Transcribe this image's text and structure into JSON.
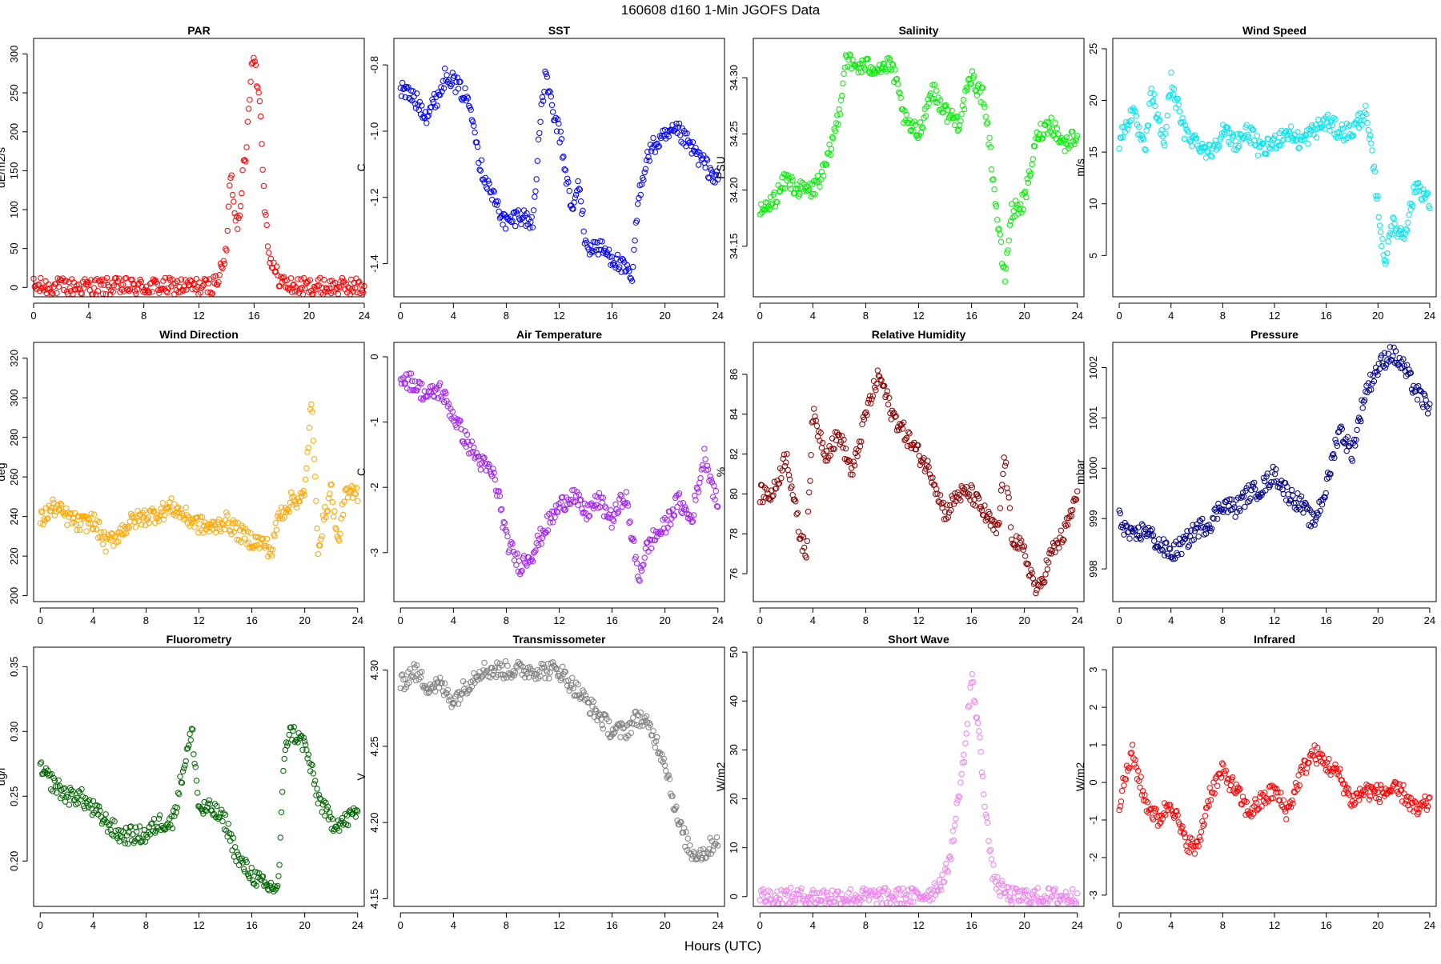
{
  "figure": {
    "title": "160608   d160   1-Min  JGOFS Data",
    "xlabel": "Hours (UTC)"
  },
  "chart_data": [
    {
      "type": "scatter",
      "title": "PAR",
      "ylabel": "uE/m2/s",
      "color": "#ff0000",
      "xlim": [
        0,
        24
      ],
      "ylim": [
        -12,
        320
      ],
      "xticks": [
        0,
        4,
        8,
        12,
        16,
        20,
        24
      ],
      "yticks": [
        0,
        50,
        100,
        150,
        200,
        250,
        300
      ],
      "yticklabels": [
        "0",
        "50",
        "100",
        "150",
        "200",
        "250",
        "300"
      ],
      "series": [
        {
          "name": "PAR",
          "x": [
            0,
            12.5,
            13.0,
            13.5,
            14.0,
            14.3,
            14.6,
            14.8,
            15.0,
            15.2,
            15.4,
            15.6,
            15.8,
            16.0,
            16.2,
            16.4,
            16.6,
            16.8,
            17.0,
            17.2,
            17.5,
            18.0,
            18.5,
            19.0,
            19.5,
            20,
            24
          ],
          "y": [
            1,
            1,
            3,
            15,
            45,
            150,
            100,
            80,
            110,
            150,
            160,
            230,
            280,
            310,
            260,
            250,
            170,
            100,
            60,
            35,
            20,
            8,
            3,
            1,
            1,
            1,
            1
          ]
        }
      ]
    },
    {
      "type": "scatter",
      "title": "SST",
      "ylabel": "C",
      "color": "#0000ff",
      "xlim": [
        -0.5,
        24.5
      ],
      "ylim": [
        -1.5,
        -0.72
      ],
      "xticks": [
        0,
        4,
        8,
        12,
        16,
        20,
        24
      ],
      "yticks": [
        -0.8,
        -1.0,
        -1.2,
        -1.4
      ],
      "yticklabels": [
        "-0.8",
        "-1.0",
        "-1.2",
        "-1.4"
      ],
      "series": [
        {
          "name": "SST",
          "x": [
            0,
            1,
            2,
            3,
            3.5,
            4,
            5,
            5.5,
            6,
            7,
            8,
            9,
            10,
            10.5,
            11,
            11.5,
            12,
            13,
            13.5,
            14,
            15,
            16,
            17,
            17.5,
            18,
            18.5,
            19,
            20,
            21,
            22,
            23,
            24
          ],
          "y": [
            -0.87,
            -0.9,
            -0.95,
            -0.88,
            -0.82,
            -0.85,
            -0.9,
            -0.95,
            -1.1,
            -1.2,
            -1.28,
            -1.25,
            -1.28,
            -1.0,
            -0.82,
            -0.95,
            -1.0,
            -1.25,
            -1.15,
            -1.35,
            -1.35,
            -1.38,
            -1.42,
            -1.45,
            -1.2,
            -1.1,
            -1.05,
            -1.02,
            -1.0,
            -1.05,
            -1.1,
            -1.15
          ]
        }
      ]
    },
    {
      "type": "scatter",
      "title": "Salinity",
      "ylabel": "PSU",
      "color": "#00ee00",
      "xlim": [
        -0.5,
        24.5
      ],
      "ylim": [
        34.105,
        34.335
      ],
      "xticks": [
        0,
        4,
        8,
        12,
        16,
        20,
        24
      ],
      "yticks": [
        34.15,
        34.2,
        34.25,
        34.3
      ],
      "yticklabels": [
        "34.15",
        "34.20",
        "34.25",
        "34.30"
      ],
      "series": [
        {
          "name": "Salinity",
          "x": [
            0,
            1,
            2,
            3,
            4,
            5,
            6,
            6.5,
            7,
            8,
            9,
            10,
            11,
            12,
            13,
            14,
            15,
            16,
            17,
            18,
            18.5,
            19,
            20,
            21,
            22,
            23,
            24
          ],
          "y": [
            34.18,
            34.19,
            34.21,
            34.2,
            34.2,
            34.22,
            34.27,
            34.32,
            34.31,
            34.31,
            34.31,
            34.31,
            34.26,
            34.25,
            34.29,
            34.27,
            34.26,
            34.3,
            34.28,
            34.17,
            34.12,
            34.18,
            34.19,
            34.25,
            34.26,
            34.24,
            34.25
          ]
        }
      ]
    },
    {
      "type": "scatter",
      "title": "Wind Speed",
      "ylabel": "m/s",
      "color": "#00e5ee",
      "xlim": [
        -0.5,
        24.5
      ],
      "ylim": [
        1,
        26
      ],
      "xticks": [
        0,
        4,
        8,
        12,
        16,
        20,
        24
      ],
      "yticks": [
        5,
        10,
        15,
        20,
        25
      ],
      "yticklabels": [
        "5",
        "10",
        "15",
        "20",
        "25"
      ],
      "series": [
        {
          "name": "Wind Speed",
          "x": [
            0,
            1,
            1.5,
            2,
            2.5,
            3,
            3.5,
            4,
            5,
            6,
            7,
            8,
            9,
            10,
            11,
            12,
            13,
            14,
            15,
            16,
            17,
            18,
            19,
            19.5,
            20,
            20.5,
            21,
            22,
            23,
            24
          ],
          "y": [
            16,
            19,
            17,
            15,
            21,
            18,
            16,
            22,
            17,
            16,
            15,
            17,
            16,
            17,
            15,
            16,
            17,
            16,
            17,
            18,
            17,
            17,
            19,
            15,
            10,
            4,
            8,
            7,
            12,
            10
          ]
        }
      ]
    },
    {
      "type": "scatter",
      "title": "Wind Direction",
      "ylabel": "deg",
      "color": "#ffa500",
      "xlim": [
        -0.5,
        24.5
      ],
      "ylim": [
        197,
        328
      ],
      "xticks": [
        0,
        4,
        8,
        12,
        16,
        20,
        24
      ],
      "yticks": [
        200,
        220,
        240,
        260,
        280,
        300,
        320
      ],
      "yticklabels": [
        "200",
        "220",
        "240",
        "260",
        "280",
        "300",
        "320"
      ],
      "series": [
        {
          "name": "Wind Direction",
          "x": [
            0,
            1,
            2,
            3,
            4,
            5,
            6,
            7,
            8,
            9,
            10,
            11,
            12,
            13,
            14,
            15,
            16,
            17,
            17.5,
            18,
            19,
            20,
            20.5,
            21,
            21.5,
            22,
            22.5,
            23,
            24
          ],
          "y": [
            238,
            245,
            240,
            236,
            238,
            226,
            232,
            238,
            240,
            242,
            245,
            240,
            236,
            234,
            238,
            232,
            228,
            226,
            222,
            240,
            248,
            250,
            300,
            225,
            240,
            255,
            225,
            250,
            252
          ]
        }
      ]
    },
    {
      "type": "scatter",
      "title": "Air Temperature",
      "ylabel": "C",
      "color": "#a020f0",
      "xlim": [
        -0.5,
        24.5
      ],
      "ylim": [
        -3.75,
        0.22
      ],
      "xticks": [
        0,
        4,
        8,
        12,
        16,
        20,
        24
      ],
      "yticks": [
        0,
        -1,
        -2,
        -3
      ],
      "yticklabels": [
        "0",
        "-1",
        "-2",
        "-3"
      ],
      "series": [
        {
          "name": "Air Temperature",
          "x": [
            0,
            1,
            2,
            3,
            4,
            5,
            6,
            7,
            7.5,
            8,
            9,
            10,
            11,
            12,
            13,
            14,
            15,
            16,
            17,
            18,
            18.5,
            19,
            20,
            21,
            22,
            23,
            24
          ],
          "y": [
            -0.3,
            -0.4,
            -0.6,
            -0.5,
            -0.9,
            -1.3,
            -1.6,
            -1.8,
            -2.2,
            -2.8,
            -3.2,
            -3.0,
            -2.6,
            -2.3,
            -2.1,
            -2.4,
            -2.2,
            -2.5,
            -2.1,
            -3.4,
            -3.0,
            -2.8,
            -2.6,
            -2.2,
            -2.5,
            -1.5,
            -2.3
          ]
        }
      ]
    },
    {
      "type": "scatter",
      "title": "Relative Humidity",
      "ylabel": "%",
      "color": "#8b0000",
      "xlim": [
        -0.5,
        24.5
      ],
      "ylim": [
        74.6,
        87.6
      ],
      "xticks": [
        0,
        4,
        8,
        12,
        16,
        20,
        24
      ],
      "yticks": [
        76,
        78,
        80,
        82,
        84,
        86
      ],
      "yticklabels": [
        "76",
        "78",
        "80",
        "82",
        "84",
        "86"
      ],
      "series": [
        {
          "name": "Relative Humidity",
          "x": [
            0,
            1,
            2,
            3,
            3.5,
            4,
            5,
            6,
            7,
            8,
            9,
            10,
            11,
            12,
            13,
            14,
            15,
            16,
            17,
            18,
            18.5,
            19,
            20,
            21,
            22,
            23,
            24
          ],
          "y": [
            80,
            80,
            82,
            78,
            77,
            84,
            82,
            83,
            81,
            84,
            86,
            84,
            83,
            82,
            81,
            79,
            80,
            80,
            79,
            78,
            82,
            78,
            77,
            75,
            77,
            78,
            80
          ]
        }
      ]
    },
    {
      "type": "scatter",
      "title": "Pressure",
      "ylabel": "mbar",
      "color": "#00008b",
      "xlim": [
        -0.5,
        24.5
      ],
      "ylim": [
        997.35,
        1002.5
      ],
      "xticks": [
        0,
        4,
        8,
        12,
        16,
        20,
        24
      ],
      "yticks": [
        998,
        999,
        1000,
        1001,
        1002
      ],
      "yticklabels": [
        "998",
        "999",
        "1000",
        "1001",
        "1002"
      ],
      "series": [
        {
          "name": "Pressure",
          "x": [
            0,
            1,
            2,
            3,
            4,
            5,
            6,
            7,
            8,
            9,
            10,
            11,
            12,
            13,
            14,
            15,
            16,
            17,
            18,
            19,
            20,
            21,
            22,
            23,
            24
          ],
          "y": [
            999.0,
            998.6,
            998.8,
            998.5,
            998.3,
            998.5,
            998.8,
            998.9,
            999.3,
            999.2,
            999.5,
            999.6,
            999.9,
            999.5,
            999.3,
            998.9,
            999.6,
            1000.8,
            1000.3,
            1001.5,
            1002.0,
            1002.3,
            1002.0,
            1001.5,
            1001.2
          ]
        }
      ]
    },
    {
      "type": "scatter",
      "title": "Fluorometry",
      "ylabel": "ug/l",
      "color": "#006400",
      "xlim": [
        -0.5,
        24.5
      ],
      "ylim": [
        0.165,
        0.365
      ],
      "xticks": [
        0,
        4,
        8,
        12,
        16,
        20,
        24
      ],
      "yticks": [
        0.2,
        0.25,
        0.3,
        0.35
      ],
      "yticklabels": [
        "0.20",
        "0.25",
        "0.30",
        "0.35"
      ],
      "series": [
        {
          "name": "Fluorometry",
          "x": [
            0,
            1,
            2,
            3,
            4,
            5,
            6,
            7,
            8,
            9,
            10,
            11,
            11.5,
            12,
            13,
            14,
            15,
            16,
            17,
            18,
            18.5,
            19,
            20,
            21,
            22,
            23,
            24
          ],
          "y": [
            0.27,
            0.26,
            0.25,
            0.25,
            0.24,
            0.23,
            0.22,
            0.22,
            0.22,
            0.23,
            0.23,
            0.28,
            0.3,
            0.24,
            0.24,
            0.23,
            0.2,
            0.19,
            0.18,
            0.18,
            0.29,
            0.3,
            0.29,
            0.25,
            0.23,
            0.23,
            0.24
          ]
        }
      ]
    },
    {
      "type": "scatter",
      "title": "Transmissometer",
      "ylabel": "V",
      "color": "#808080",
      "xlim": [
        -0.5,
        24.5
      ],
      "ylim": [
        4.145,
        4.315
      ],
      "xticks": [
        0,
        4,
        8,
        12,
        16,
        20,
        24
      ],
      "yticks": [
        4.15,
        4.2,
        4.25,
        4.3
      ],
      "yticklabels": [
        "4.15",
        "4.20",
        "4.25",
        "4.30"
      ],
      "series": [
        {
          "name": "Transmissometer",
          "x": [
            0,
            1,
            2,
            3,
            4,
            5,
            6,
            7,
            8,
            9,
            10,
            11,
            12,
            13,
            14,
            15,
            16,
            17,
            18,
            19,
            20,
            21,
            22,
            23,
            24
          ],
          "y": [
            4.29,
            4.3,
            4.29,
            4.29,
            4.28,
            4.29,
            4.3,
            4.3,
            4.3,
            4.3,
            4.3,
            4.3,
            4.3,
            4.29,
            4.28,
            4.27,
            4.26,
            4.26,
            4.27,
            4.26,
            4.24,
            4.2,
            4.18,
            4.18,
            4.19
          ]
        }
      ]
    },
    {
      "type": "scatter",
      "title": "Short Wave",
      "ylabel": "W/m2",
      "color": "#ee82ee",
      "xlim": [
        -0.5,
        24.5
      ],
      "ylim": [
        -2,
        51
      ],
      "xticks": [
        0,
        4,
        8,
        12,
        16,
        20,
        24
      ],
      "yticks": [
        0,
        10,
        20,
        30,
        40,
        50
      ],
      "yticklabels": [
        "0",
        "10",
        "20",
        "30",
        "40",
        "50"
      ],
      "series": [
        {
          "name": "Short Wave",
          "x": [
            0,
            2,
            4,
            6,
            8,
            10,
            12,
            13,
            14,
            14.5,
            15,
            15.5,
            16,
            16.5,
            17,
            17.5,
            18,
            19,
            20,
            22,
            24
          ],
          "y": [
            0,
            0,
            0,
            0,
            0,
            0,
            0,
            1,
            4,
            10,
            20,
            30,
            45,
            35,
            20,
            6,
            2,
            0,
            0,
            0,
            0
          ]
        }
      ]
    },
    {
      "type": "scatter",
      "title": "Infrared",
      "ylabel": "W/m2",
      "color": "#ff0000",
      "xlim": [
        -0.5,
        24.5
      ],
      "ylim": [
        -3.3,
        3.6
      ],
      "xticks": [
        0,
        4,
        8,
        12,
        16,
        20,
        24
      ],
      "yticks": [
        3,
        2,
        1,
        0,
        -1,
        -2,
        -3
      ],
      "yticklabels": [
        "3",
        "2",
        "1",
        "0",
        "-1",
        "-2",
        "-3"
      ],
      "series": [
        {
          "name": "Infrared",
          "x": [
            0,
            1,
            2,
            3,
            4,
            5,
            6,
            7,
            8,
            9,
            10,
            11,
            12,
            13,
            14,
            15,
            16,
            17,
            18,
            19,
            20,
            21,
            22,
            23,
            24
          ],
          "y": [
            -0.5,
            0.8,
            -0.5,
            -1.0,
            -0.5,
            -1.5,
            -1.8,
            -0.3,
            0.3,
            -0.2,
            -0.8,
            -0.5,
            -0.2,
            -0.8,
            0.2,
            0.8,
            0.5,
            0.2,
            -0.5,
            -0.2,
            -0.3,
            -0.2,
            -0.3,
            -0.8,
            -0.5
          ]
        }
      ]
    }
  ]
}
